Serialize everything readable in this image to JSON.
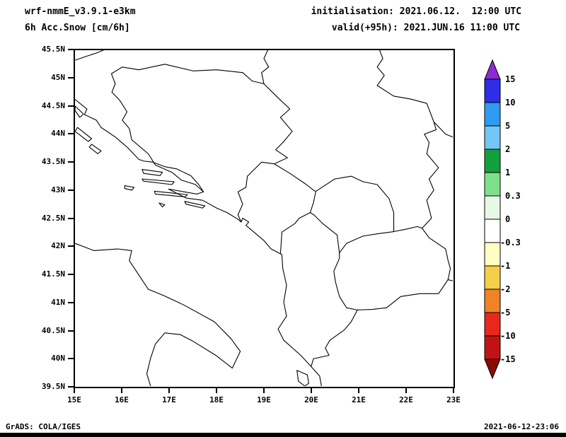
{
  "header": {
    "model": "wrf-nmmE_v3.9.1-e3km",
    "field": "6h Acc.Snow [cm/6h]",
    "init_line": "initialisation: 2021.06.12.  12:00 UTC",
    "valid_line": "valid(+95h): 2021.JUN.16 11:00 UTC"
  },
  "footer": {
    "left": "GrADS: COLA/IGES",
    "right": "2021-06-12-23:06"
  },
  "chart_data": {
    "type": "map",
    "title": "6h Acc.Snow [cm/6h]",
    "subtitle": "wrf-nmmE_v3.9.1-e3km",
    "region": {
      "lon_min_e": 15,
      "lon_max_e": 23,
      "lat_min_n": 39.5,
      "lat_max_n": 45.5,
      "area": "Adriatic / western Balkans"
    },
    "x_ticks": [
      "15E",
      "16E",
      "17E",
      "18E",
      "19E",
      "20E",
      "21E",
      "22E",
      "23E"
    ],
    "y_ticks": [
      "45.5N",
      "45N",
      "44.5N",
      "44N",
      "43.5N",
      "43N",
      "42.5N",
      "42N",
      "41.5N",
      "41N",
      "40.5N",
      "40N",
      "39.5N"
    ],
    "grid": false,
    "colorbar": {
      "unit": "cm/6h",
      "orientation": "vertical-right",
      "boundary_labels": [
        "15",
        "10",
        "5",
        "2",
        "1",
        "0.3",
        "0",
        "-0.3",
        "-1",
        "-2",
        "-5",
        "-10",
        "-15"
      ],
      "colors_top_to_bottom": [
        "#8A2BD6",
        "#2E2EE6",
        "#2E9BF0",
        "#73C6F5",
        "#12A03C",
        "#7FE08C",
        "#E6F8E6",
        "#FFFFFF",
        "#FFFFC2",
        "#F5CE4A",
        "#F08228",
        "#E8281E",
        "#C01414",
        "#8B0A06"
      ]
    },
    "field_values": "no shaded snow accumulation anywhere in the domain; map interior is entirely white (outlines only)"
  }
}
